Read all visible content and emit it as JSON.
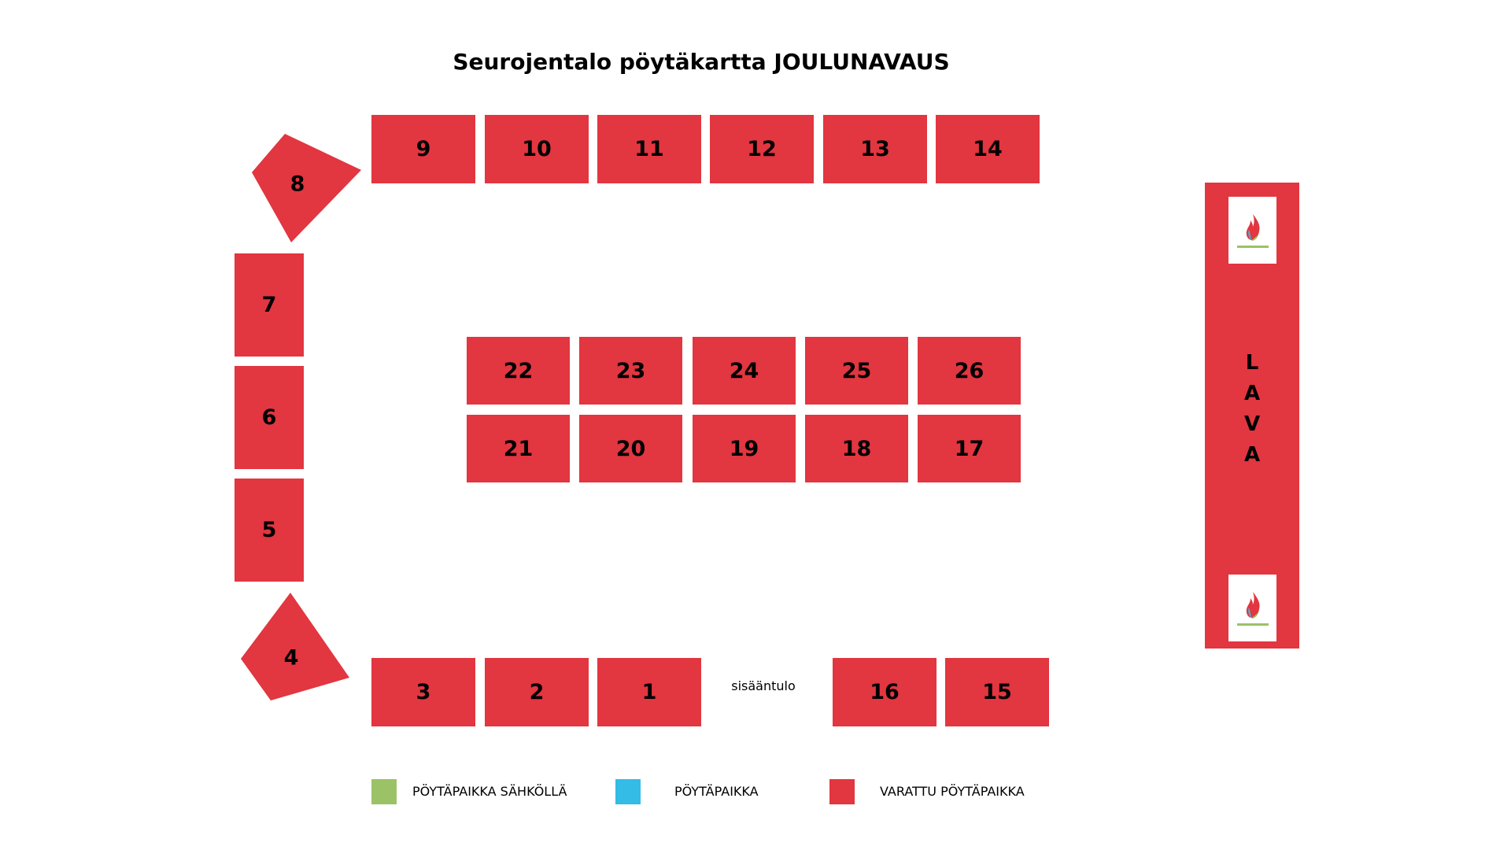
{
  "title": "Seurojentalo pöytäkartta JOULUNAVAUS",
  "colors": {
    "reserved": "#e23640",
    "electric": "#9bc267",
    "available": "#34bbe6",
    "background": "#ffffff"
  },
  "tables": {
    "t1": "1",
    "t2": "2",
    "t3": "3",
    "t4": "4",
    "t5": "5",
    "t6": "6",
    "t7": "7",
    "t8": "8",
    "t9": "9",
    "t10": "10",
    "t11": "11",
    "t12": "12",
    "t13": "13",
    "t14": "14",
    "t15": "15",
    "t16": "16",
    "t17": "17",
    "t18": "18",
    "t19": "19",
    "t20": "20",
    "t21": "21",
    "t22": "22",
    "t23": "23",
    "t24": "24",
    "t25": "25",
    "t26": "26"
  },
  "entrance_label": "sisääntulo",
  "stage": {
    "letters": [
      "L",
      "A",
      "V",
      "A"
    ],
    "logo_icon": "flame-logo-icon"
  },
  "legend": {
    "electric_label": "PÖYTÄPAIKKA SÄHKÖLLÄ",
    "available_label": "PÖYTÄPAIKKA",
    "reserved_label": "VARATTU PÖYTÄPAIKKA"
  }
}
